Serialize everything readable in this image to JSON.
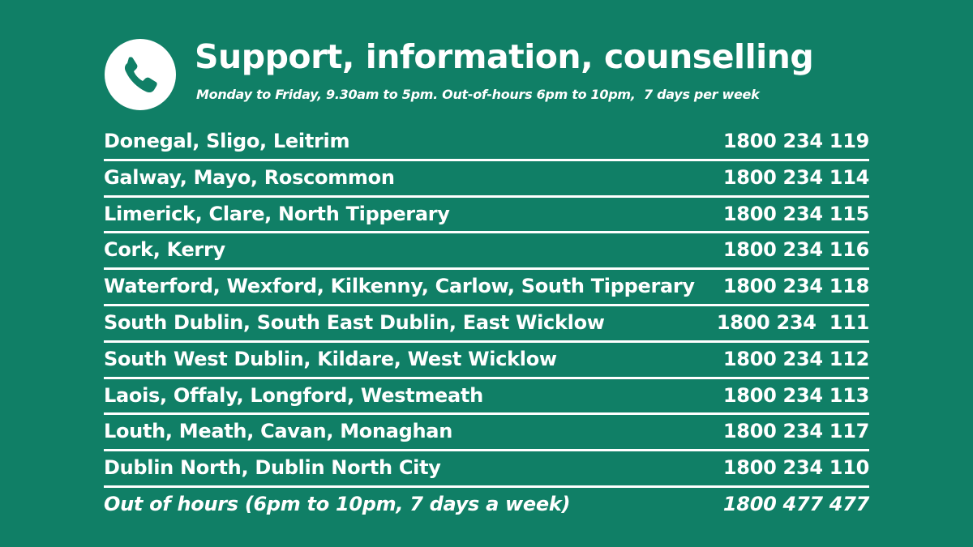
{
  "header": {
    "title": "Support, information, counselling",
    "subtitle": "Monday to Friday, 9.30am to 5pm. Out-of-hours 6pm to 10pm,  7 days per week"
  },
  "table": {
    "rows": [
      [
        "Donegal, Sligo, Leitrim",
        "1800 234 119"
      ],
      [
        "Galway, Mayo, Roscommon",
        "1800 234 114"
      ],
      [
        "Limerick, Clare, North Tipperary",
        "1800 234 115"
      ],
      [
        "Cork, Kerry",
        "1800 234 116"
      ],
      [
        "Waterford, Wexford, Kilkenny, Carlow, South Tipperary",
        "1800 234 118"
      ],
      [
        "South Dublin, South East Dublin, East Wicklow",
        "1800 234  111"
      ],
      [
        "South West Dublin, Kildare, West Wicklow",
        "1800 234 112"
      ],
      [
        "Laois, Offaly, Longford, Westmeath",
        "1800 234 113"
      ],
      [
        "Louth, Meath, Cavan, Monaghan",
        "1800 234 117"
      ],
      [
        "Dublin North, Dublin North City",
        "1800 234 110"
      ],
      [
        "Out of hours (6pm to 10pm, 7 days a week)",
        "1800 477 477"
      ]
    ]
  }
}
